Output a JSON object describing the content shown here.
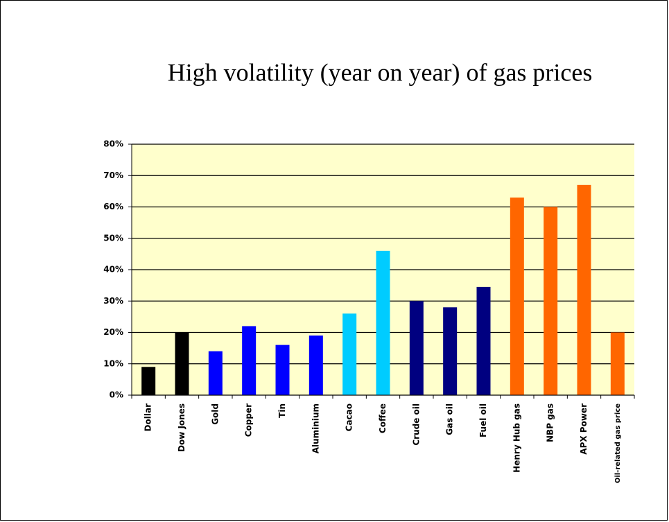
{
  "chart_data": {
    "type": "bar",
    "title": "High volatility (year on year) of gas prices",
    "categories": [
      "Dollar",
      "Dow Jones",
      "Gold",
      "Copper",
      "Tin",
      "Aluminium",
      "Cacao",
      "Coffee",
      "Crude oil",
      "Gas oil",
      "Fuel oil",
      "Henry Hub gas",
      "NBP gas",
      "APX Power",
      "Oil-related gas price"
    ],
    "values": [
      9,
      20,
      14,
      22,
      16,
      19,
      26,
      46,
      30,
      28,
      34.5,
      63,
      60,
      67,
      20
    ],
    "colors": [
      "#000000",
      "#000000",
      "#0000ff",
      "#0000ff",
      "#0000ff",
      "#0000ff",
      "#00ccff",
      "#00ccff",
      "#000080",
      "#000080",
      "#000080",
      "#ff6600",
      "#ff6600",
      "#ff6600",
      "#ff6600"
    ],
    "ylim": [
      0,
      80
    ],
    "yticks": [
      {
        "value": 0,
        "label": "0%"
      },
      {
        "value": 10,
        "label": "10%"
      },
      {
        "value": 20,
        "label": "20%"
      },
      {
        "value": 30,
        "label": "30%"
      },
      {
        "value": 40,
        "label": "40%"
      },
      {
        "value": 50,
        "label": "50%"
      },
      {
        "value": 60,
        "label": "60%"
      },
      {
        "value": 70,
        "label": "70%"
      },
      {
        "value": 80,
        "label": "80%"
      }
    ],
    "grid": true
  }
}
